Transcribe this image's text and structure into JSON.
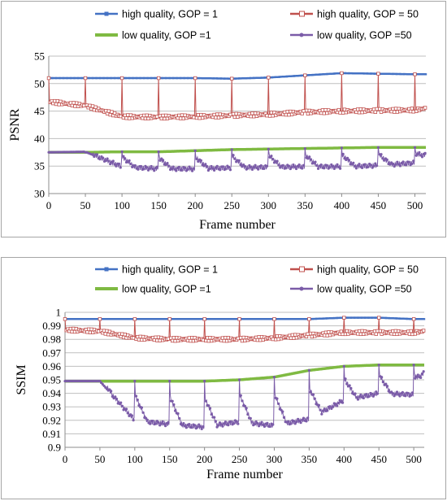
{
  "colors": {
    "high_gop1": "#4472c4",
    "high_gop50": "#c0504d",
    "low_gop1": "#7fba42",
    "low_gop50": "#7b5ca8",
    "grid": "#bfbfbf",
    "axis": "#8c8c8c"
  },
  "chart_data": [
    {
      "type": "line",
      "title": "",
      "xlabel": "Frame number",
      "ylabel": "PSNR",
      "xlim": [
        0,
        515
      ],
      "ylim": [
        30,
        55
      ],
      "x_ticks": [
        "0",
        "50",
        "100",
        "150",
        "200",
        "250",
        "300",
        "350",
        "400",
        "450",
        "500"
      ],
      "y_ticks": [
        "30",
        "35",
        "40",
        "45",
        "50",
        "55"
      ],
      "grid": "horizontal",
      "legend_position": "top",
      "x": [
        0,
        50,
        100,
        150,
        200,
        250,
        300,
        350,
        400,
        450,
        500,
        515
      ],
      "series": [
        {
          "name": "high quality, GOP = 1",
          "values": [
            51.0,
            51.0,
            51.0,
            51.0,
            51.0,
            50.9,
            51.1,
            51.5,
            51.9,
            51.8,
            51.7,
            51.7
          ]
        },
        {
          "name": "high quality, GOP = 50",
          "values": [
            46.7,
            46.0,
            44.0,
            43.9,
            44.0,
            44.2,
            44.4,
            44.8,
            45.0,
            45.1,
            45.2,
            45.5
          ]
        },
        {
          "name": "low quality, GOP =1",
          "values": [
            37.5,
            37.5,
            37.6,
            37.6,
            37.8,
            38.0,
            38.1,
            38.2,
            38.3,
            38.4,
            38.4,
            38.4
          ]
        },
        {
          "name": "low quality, GOP =50",
          "values": [
            37.5,
            37.6,
            34.9,
            34.5,
            34.5,
            34.7,
            34.8,
            34.9,
            34.9,
            35.1,
            35.6,
            36.9
          ]
        }
      ]
    },
    {
      "type": "line",
      "title": "",
      "xlabel": "Frame number",
      "ylabel": "SSIM",
      "xlim": [
        0,
        515
      ],
      "ylim": [
        0.9,
        1.0
      ],
      "x_ticks": [
        "0",
        "50",
        "100",
        "150",
        "200",
        "250",
        "300",
        "350",
        "400",
        "450",
        "500"
      ],
      "y_ticks": [
        "0.9",
        "0.91",
        "0.92",
        "0.93",
        "0.94",
        "0.95",
        "0.96",
        "0.97",
        "0.98",
        "0.99",
        "1"
      ],
      "grid": "horizontal",
      "legend_position": "top",
      "x": [
        0,
        50,
        100,
        150,
        200,
        250,
        300,
        350,
        400,
        450,
        500,
        515
      ],
      "series": [
        {
          "name": "high quality, GOP = 1",
          "values": [
            0.995,
            0.995,
            0.995,
            0.995,
            0.995,
            0.995,
            0.995,
            0.995,
            0.996,
            0.996,
            0.995,
            0.995
          ]
        },
        {
          "name": "high quality, GOP = 50",
          "values": [
            0.987,
            0.986,
            0.981,
            0.98,
            0.98,
            0.98,
            0.981,
            0.983,
            0.985,
            0.985,
            0.985,
            0.986
          ]
        },
        {
          "name": "low quality, GOP =1",
          "values": [
            0.949,
            0.949,
            0.949,
            0.949,
            0.949,
            0.95,
            0.952,
            0.957,
            0.96,
            0.961,
            0.961,
            0.961
          ]
        },
        {
          "name": "low quality, GOP =50",
          "values": [
            0.949,
            0.949,
            0.92,
            0.917,
            0.915,
            0.919,
            0.916,
            0.921,
            0.935,
            0.94,
            0.939,
            0.955
          ]
        }
      ]
    }
  ]
}
